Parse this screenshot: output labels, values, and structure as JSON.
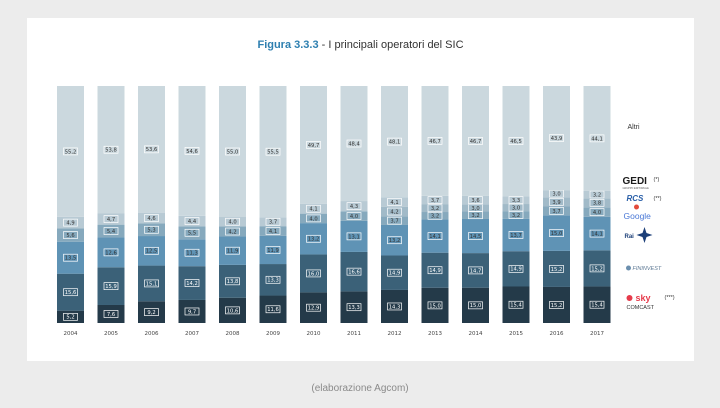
{
  "caption": "(elaborazione Agcom)",
  "chart_data": {
    "type": "bar",
    "stacked": true,
    "normalized_percent": true,
    "title_number": "Figura 3.3.3",
    "title_sep": " - ",
    "title_text": "I principali operatori del SIC",
    "categories": [
      "2004",
      "2005",
      "2006",
      "2007",
      "2008",
      "2009",
      "2010",
      "2011",
      "2012",
      "2013",
      "2014",
      "2015",
      "2016",
      "2017"
    ],
    "series": [
      {
        "key": "comcast",
        "legend_text": "(***)",
        "color": "#243a49",
        "values": [
          5.2,
          7.6,
          9.2,
          9.7,
          10.6,
          11.6,
          12.9,
          13.3,
          14.3,
          15.0,
          15.0,
          15.4,
          15.2,
          15.4
        ]
      },
      {
        "key": "fininvest",
        "color": "#3b6178",
        "values": [
          15.6,
          15.9,
          15.1,
          14.2,
          13.8,
          13.3,
          16.0,
          16.6,
          14.9,
          14.9,
          14.7,
          14.9,
          15.2,
          15.2
        ]
      },
      {
        "key": "rai",
        "color": "#5f93b5",
        "values": [
          13.5,
          12.6,
          12.5,
          11.3,
          11.9,
          11.9,
          13.2,
          13.1,
          13.2,
          14.1,
          14.5,
          13.7,
          15.0,
          14.1
        ]
      },
      {
        "key": "google",
        "color": "#86a9bd",
        "values": [
          5.6,
          5.4,
          5.3,
          5.5,
          4.2,
          4.1,
          4.0,
          4.0,
          3.7,
          3.2,
          3.2,
          3.2,
          3.7,
          4.0
        ]
      },
      {
        "key": "rcs",
        "legend_text": "(**)",
        "color": "#a1bac8",
        "values": [
          null,
          null,
          null,
          null,
          null,
          null,
          null,
          null,
          4.2,
          3.2,
          3.0,
          3.0,
          3.9,
          3.8
        ]
      },
      {
        "key": "gedi",
        "legend_text": "(*)",
        "color": "#b8cad4",
        "values": [
          4.9,
          4.7,
          4.6,
          4.4,
          4.0,
          3.7,
          4.1,
          4.3,
          4.1,
          3.7,
          3.6,
          3.3,
          3.0,
          3.2
        ]
      },
      {
        "key": "altri",
        "name": "Altri",
        "color": "#cbd8de",
        "values": [
          55.2,
          53.8,
          53.6,
          54.6,
          55.0,
          55.5,
          49.7,
          48.4,
          48.1,
          46.7,
          46.7,
          46.5,
          43.9,
          44.1
        ]
      }
    ],
    "logos": {
      "gedi": "GEDI",
      "gedi_sub": "GRUPPO EDITORIALE",
      "rcs": "RCS",
      "google": "Google",
      "rai": "Rai",
      "fininvest": "FININVEST",
      "sky": "sky",
      "comcast": "COMCAST"
    },
    "value_label_decimal_comma": true
  }
}
